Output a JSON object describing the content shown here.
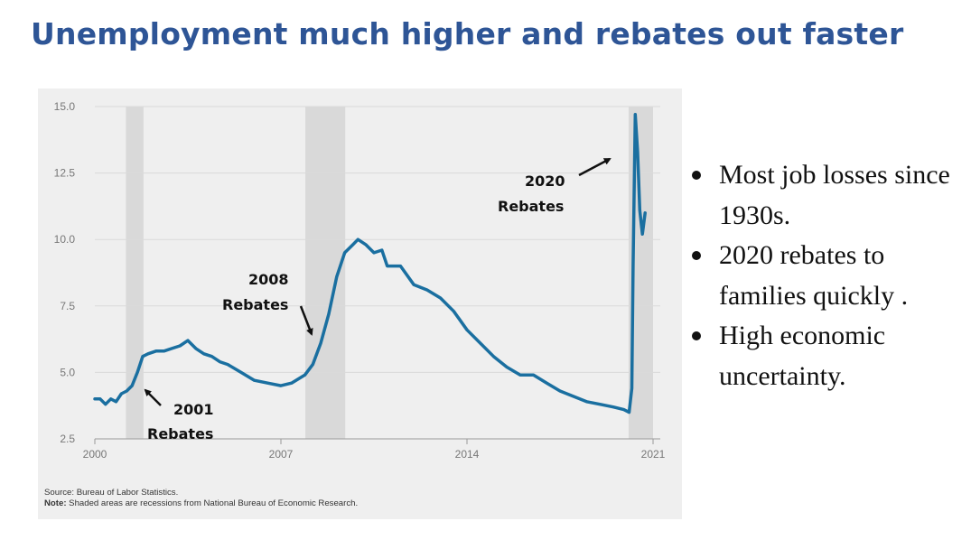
{
  "slide": {
    "title": "Unemployment much higher and rebates out faster"
  },
  "bullets": [
    "Most job losses since 1930s.",
    "2020 rebates to families quickly .",
    "High economic uncertainty."
  ],
  "colors": {
    "title": "#2e5596",
    "line": "#1a6fa0",
    "recession": "#d9d9d9",
    "panel": "#efefef"
  },
  "chart_data": {
    "type": "line",
    "title": "",
    "xlabel": "",
    "ylabel": "",
    "xlim": [
      2000,
      2021
    ],
    "ylim": [
      2.5,
      15.0
    ],
    "yticks": [
      "15.0",
      "12.5",
      "10.0",
      "7.5",
      "5.0",
      "2.5"
    ],
    "xticks": [
      "2000",
      "2007",
      "2014",
      "2021"
    ],
    "grid": true,
    "recessions": [
      {
        "start": 2001.17,
        "end": 2001.83
      },
      {
        "start": 2007.92,
        "end": 2009.42
      },
      {
        "start": 2020.08,
        "end": 2021.0
      }
    ],
    "series": [
      {
        "x": [
          2000.0,
          2000.2,
          2000.4,
          2000.6,
          2000.8,
          2001.0,
          2001.2,
          2001.4,
          2001.6,
          2001.8,
          2002.0,
          2002.3,
          2002.6,
          2002.9,
          2003.2,
          2003.5,
          2003.8,
          2004.1,
          2004.4,
          2004.7,
          2005.0,
          2005.5,
          2006.0,
          2006.5,
          2007.0,
          2007.4,
          2007.9,
          2008.2,
          2008.5,
          2008.8,
          2009.1,
          2009.4,
          2009.7,
          2009.9,
          2010.2,
          2010.5,
          2010.8,
          2011.0,
          2011.5,
          2012.0,
          2012.5,
          2013.0,
          2013.5,
          2014.0,
          2014.5,
          2015.0,
          2015.5,
          2016.0,
          2016.5,
          2017.0,
          2017.5,
          2018.0,
          2018.5,
          2019.0,
          2019.5,
          2019.9,
          2020.1,
          2020.2,
          2020.25,
          2020.33,
          2020.42,
          2020.5,
          2020.6,
          2020.7
        ],
        "values": [
          4.0,
          4.0,
          3.8,
          4.0,
          3.9,
          4.2,
          4.3,
          4.5,
          5.0,
          5.6,
          5.7,
          5.8,
          5.8,
          5.9,
          6.0,
          6.2,
          5.9,
          5.7,
          5.6,
          5.4,
          5.3,
          5.0,
          4.7,
          4.6,
          4.5,
          4.6,
          4.9,
          5.3,
          6.1,
          7.2,
          8.6,
          9.5,
          9.8,
          10.0,
          9.8,
          9.5,
          9.6,
          9.0,
          9.0,
          8.3,
          8.1,
          7.8,
          7.3,
          6.6,
          6.1,
          5.6,
          5.2,
          4.9,
          4.9,
          4.6,
          4.3,
          4.1,
          3.9,
          3.8,
          3.7,
          3.6,
          3.5,
          4.4,
          9.0,
          14.7,
          13.3,
          11.1,
          10.2,
          11.0
        ]
      }
    ],
    "annotations": [
      {
        "lines": [
          "2001",
          "Rebates"
        ]
      },
      {
        "lines": [
          "2008",
          "Rebates"
        ]
      },
      {
        "lines": [
          "2020",
          "Rebates"
        ]
      }
    ],
    "source": "Source: Bureau of Labor Statistics.",
    "note_label": "Note:",
    "note_text": " Shaded areas are recessions from National Bureau of Economic Research."
  }
}
